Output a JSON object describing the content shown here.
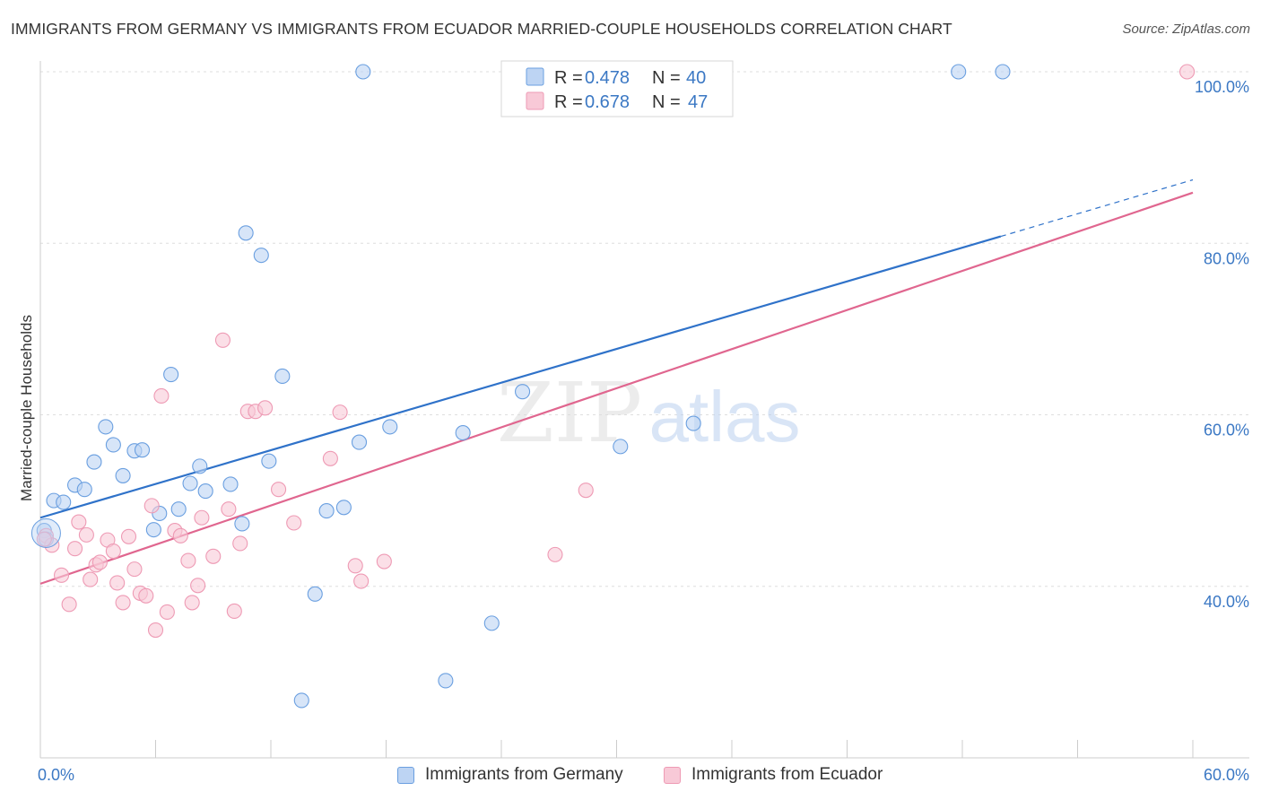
{
  "title": "IMMIGRANTS FROM GERMANY VS IMMIGRANTS FROM ECUADOR MARRIED-COUPLE HOUSEHOLDS CORRELATION CHART",
  "source": "Source: ZipAtlas.com",
  "watermark": {
    "zip": "ZIP",
    "atlas": "atlas"
  },
  "legend": {
    "r_label": "R =",
    "n_label": "N =",
    "entries": [
      {
        "r": "0.478",
        "n": "40"
      },
      {
        "r": "0.678",
        "n": "47"
      }
    ]
  },
  "chart_data": {
    "type": "scatter",
    "ylabel": "Married-couple Households",
    "xlim": [
      0,
      60
    ],
    "ylim": [
      20,
      100
    ],
    "x_tick_labels": [
      {
        "value": 0,
        "label": "0.0%"
      },
      {
        "value": 60,
        "label": "60.0%"
      }
    ],
    "y_tick_labels": [
      {
        "value": 40,
        "label": "40.0%"
      },
      {
        "value": 60,
        "label": "60.0%"
      },
      {
        "value": 80,
        "label": "80.0%"
      },
      {
        "value": 100,
        "label": "100.0%"
      }
    ],
    "y_gridlines": [
      40,
      60,
      80,
      100
    ],
    "series": [
      {
        "name": "Immigrants from Germany",
        "color": "#6a9fe0",
        "fill": "#bdd4f3",
        "line_color": "#2f72c9",
        "trend": {
          "x0": 0,
          "y0": 48.0,
          "x1": 50,
          "y1": 80.8,
          "dash_x1": 60,
          "dash_y1": 87.4
        },
        "points": [
          [
            0.2,
            46.5
          ],
          [
            0.3,
            45.5
          ],
          [
            0.7,
            50.0
          ],
          [
            1.2,
            49.8
          ],
          [
            1.8,
            51.8
          ],
          [
            2.3,
            51.3
          ],
          [
            2.8,
            54.5
          ],
          [
            3.4,
            58.6
          ],
          [
            3.8,
            56.5
          ],
          [
            4.3,
            52.9
          ],
          [
            4.9,
            55.8
          ],
          [
            5.3,
            55.9
          ],
          [
            5.9,
            46.6
          ],
          [
            6.2,
            48.5
          ],
          [
            6.8,
            64.7
          ],
          [
            7.2,
            49.0
          ],
          [
            7.8,
            52.0
          ],
          [
            8.3,
            54.0
          ],
          [
            8.6,
            51.1
          ],
          [
            9.9,
            51.9
          ],
          [
            10.5,
            47.3
          ],
          [
            10.7,
            81.2
          ],
          [
            11.5,
            78.6
          ],
          [
            11.9,
            54.6
          ],
          [
            12.6,
            64.5
          ],
          [
            13.6,
            26.7
          ],
          [
            14.3,
            39.1
          ],
          [
            14.9,
            48.8
          ],
          [
            15.8,
            49.2
          ],
          [
            16.6,
            56.8
          ],
          [
            16.8,
            100.0
          ],
          [
            18.2,
            58.6
          ],
          [
            21.1,
            29.0
          ],
          [
            22.0,
            57.9
          ],
          [
            23.5,
            35.7
          ],
          [
            25.1,
            62.7
          ],
          [
            30.2,
            56.3
          ],
          [
            34.0,
            59.0
          ],
          [
            47.8,
            100.0
          ],
          [
            50.1,
            100.0
          ]
        ]
      },
      {
        "name": "Immigrants from Ecuador",
        "color": "#ee9ab4",
        "fill": "#f8c9d7",
        "line_color": "#e0668f",
        "trend": {
          "x0": 0,
          "y0": 40.3,
          "x1": 60,
          "y1": 85.9
        },
        "points": [
          [
            0.3,
            45.9
          ],
          [
            0.6,
            44.8
          ],
          [
            1.1,
            41.3
          ],
          [
            1.5,
            37.9
          ],
          [
            1.8,
            44.4
          ],
          [
            2.0,
            47.5
          ],
          [
            2.4,
            46.0
          ],
          [
            2.6,
            40.8
          ],
          [
            2.9,
            42.5
          ],
          [
            3.1,
            42.8
          ],
          [
            3.5,
            45.4
          ],
          [
            3.8,
            44.1
          ],
          [
            4.0,
            40.4
          ],
          [
            4.3,
            38.1
          ],
          [
            4.6,
            45.8
          ],
          [
            4.9,
            42.0
          ],
          [
            5.2,
            39.2
          ],
          [
            5.5,
            38.9
          ],
          [
            5.8,
            49.4
          ],
          [
            6.0,
            34.9
          ],
          [
            6.3,
            62.2
          ],
          [
            6.6,
            37.0
          ],
          [
            7.0,
            46.5
          ],
          [
            7.3,
            45.9
          ],
          [
            7.7,
            43.0
          ],
          [
            7.9,
            38.1
          ],
          [
            8.2,
            40.1
          ],
          [
            8.4,
            48.0
          ],
          [
            9.0,
            43.5
          ],
          [
            9.5,
            68.7
          ],
          [
            9.8,
            49.0
          ],
          [
            10.1,
            37.1
          ],
          [
            10.4,
            45.0
          ],
          [
            10.8,
            60.4
          ],
          [
            11.2,
            60.4
          ],
          [
            11.7,
            60.8
          ],
          [
            12.4,
            51.3
          ],
          [
            13.2,
            47.4
          ],
          [
            15.1,
            54.9
          ],
          [
            15.6,
            60.3
          ],
          [
            16.4,
            42.4
          ],
          [
            16.7,
            40.6
          ],
          [
            17.9,
            42.9
          ],
          [
            26.8,
            43.7
          ],
          [
            28.4,
            51.2
          ],
          [
            59.7,
            100.0
          ],
          [
            0.2,
            45.5
          ]
        ]
      }
    ]
  }
}
